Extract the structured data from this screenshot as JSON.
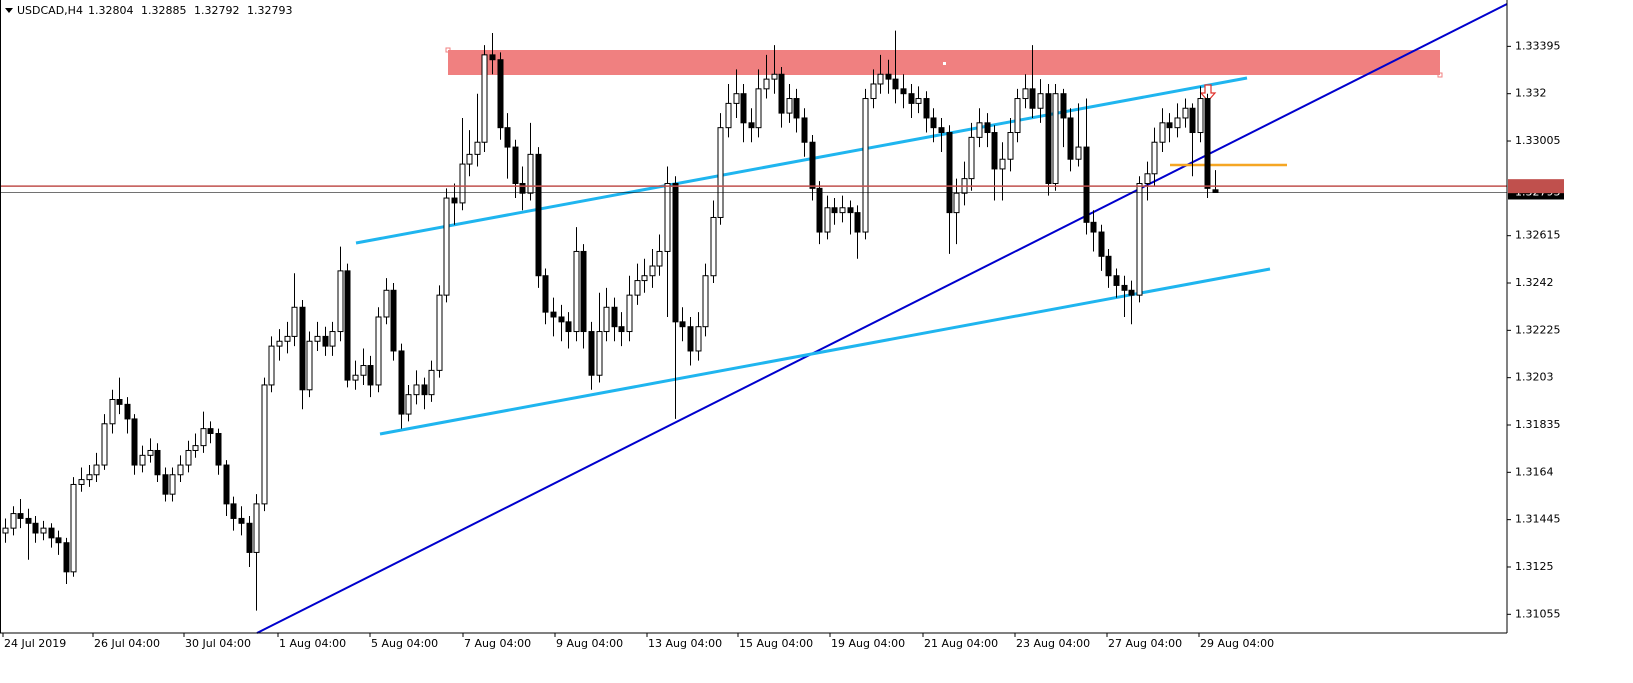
{
  "chart_data": {
    "type": "candlestick",
    "symbol": "USDCAD,H4",
    "ylim": [
      1.30978,
      1.33586
    ],
    "yticks": [
      1.31055,
      1.3125,
      1.31445,
      1.3164,
      1.31835,
      1.3203,
      1.32225,
      1.3242,
      1.32615,
      1.33005,
      1.332,
      1.33395
    ],
    "xticks": [
      "24 Jul 2019",
      "26 Jul 04:00",
      "30 Jul 04:00",
      "1 Aug 04:00",
      "5 Aug 04:00",
      "7 Aug 04:00",
      "9 Aug 04:00",
      "13 Aug 04:00",
      "15 Aug 04:00",
      "19 Aug 04:00",
      "21 Aug 04:00",
      "23 Aug 04:00",
      "27 Aug 04:00",
      "29 Aug 04:00"
    ],
    "up_color": "#ffffff",
    "down_color": "#000000",
    "price_lines": [
      {
        "value": 1.32819,
        "color": "#c0504d"
      },
      {
        "value": 1.32793,
        "color": "#000000"
      }
    ],
    "candles": {
      "open": [
        1.3139,
        1.3141,
        1.3147,
        1.3145,
        1.3143,
        1.3139,
        1.3141,
        1.3137,
        1.3135,
        1.3123,
        1.3159,
        1.3161,
        1.3163,
        1.3167,
        1.3184,
        1.3194,
        1.3192,
        1.3186,
        1.3167,
        1.3171,
        1.3173,
        1.3163,
        1.3155,
        1.3163,
        1.3167,
        1.3173,
        1.3175,
        1.3182,
        1.318,
        1.3167,
        1.3151,
        1.3145,
        1.3143,
        1.3131,
        1.3151,
        1.32,
        1.3216,
        1.3218,
        1.322,
        1.3232,
        1.3198,
        1.3218,
        1.322,
        1.3216,
        1.3222,
        1.3247,
        1.3202,
        1.3204,
        1.3208,
        1.32,
        1.3228,
        1.3239,
        1.3214,
        1.3188,
        1.3196,
        1.32,
        1.3196,
        1.3206,
        1.3237,
        1.3277,
        1.3275,
        1.3291,
        1.3295,
        1.33,
        1.3336,
        1.3334,
        1.3306,
        1.3298,
        1.3283,
        1.3279,
        1.3295,
        1.3245,
        1.323,
        1.3228,
        1.3226,
        1.3222,
        1.3255,
        1.3222,
        1.3204,
        1.3222,
        1.3232,
        1.3224,
        1.3222,
        1.3237,
        1.3243,
        1.3245,
        1.3249,
        1.3255,
        1.3283,
        1.3226,
        1.3224,
        1.3214,
        1.3224,
        1.3245,
        1.3269,
        1.3306,
        1.3316,
        1.332,
        1.3308,
        1.3306,
        1.3322,
        1.3326,
        1.3328,
        1.3312,
        1.3318,
        1.331,
        1.33,
        1.3281,
        1.3263,
        1.3273,
        1.3271,
        1.3273,
        1.3271,
        1.3263,
        1.3318,
        1.3324,
        1.3328,
        1.3326,
        1.3322,
        1.332,
        1.3316,
        1.3318,
        1.331,
        1.3306,
        1.3304,
        1.3271,
        1.3279,
        1.3285,
        1.3302,
        1.3308,
        1.3304,
        1.3289,
        1.3293,
        1.3304,
        1.3318,
        1.3322,
        1.3314,
        1.332,
        1.3283,
        1.332,
        1.331,
        1.3293,
        1.3298,
        1.3267,
        1.3263,
        1.3253,
        1.3245,
        1.3241,
        1.3239,
        1.3237,
        1.3283,
        1.3287,
        1.33,
        1.3308,
        1.3306,
        1.331,
        1.3314,
        1.3304,
        1.3318,
        1.32804
      ],
      "high": [
        1.3145,
        1.315,
        1.3153,
        1.3149,
        1.3146,
        1.3144,
        1.3143,
        1.314,
        1.3137,
        1.3162,
        1.3166,
        1.3167,
        1.3172,
        1.3188,
        1.3198,
        1.3203,
        1.3195,
        1.3188,
        1.3175,
        1.3178,
        1.3176,
        1.3166,
        1.3166,
        1.3171,
        1.3177,
        1.318,
        1.3189,
        1.3185,
        1.3182,
        1.3169,
        1.3154,
        1.315,
        1.3146,
        1.3155,
        1.3203,
        1.322,
        1.3223,
        1.3226,
        1.3246,
        1.3235,
        1.3222,
        1.3226,
        1.3224,
        1.3226,
        1.3257,
        1.325,
        1.321,
        1.3215,
        1.3212,
        1.3232,
        1.3244,
        1.3242,
        1.3217,
        1.32,
        1.3206,
        1.3203,
        1.321,
        1.3241,
        1.3281,
        1.3283,
        1.331,
        1.3305,
        1.332,
        1.334,
        1.3345,
        1.3337,
        1.3312,
        1.3301,
        1.329,
        1.3308,
        1.3298,
        1.3248,
        1.3236,
        1.3233,
        1.323,
        1.3265,
        1.3258,
        1.3226,
        1.3238,
        1.324,
        1.3236,
        1.323,
        1.3245,
        1.325,
        1.3252,
        1.3256,
        1.3262,
        1.329,
        1.3286,
        1.3232,
        1.3228,
        1.323,
        1.325,
        1.3276,
        1.3312,
        1.3324,
        1.333,
        1.3324,
        1.3314,
        1.333,
        1.3336,
        1.334,
        1.3331,
        1.3324,
        1.3322,
        1.3314,
        1.3303,
        1.3284,
        1.3278,
        1.3277,
        1.3278,
        1.3276,
        1.3274,
        1.3322,
        1.333,
        1.3336,
        1.3334,
        1.3346,
        1.3328,
        1.3324,
        1.3323,
        1.3321,
        1.3314,
        1.331,
        1.3307,
        1.3285,
        1.3292,
        1.3308,
        1.3314,
        1.3312,
        1.3307,
        1.33,
        1.331,
        1.3322,
        1.3328,
        1.334,
        1.3326,
        1.3324,
        1.3324,
        1.3322,
        1.3314,
        1.3316,
        1.3318,
        1.3272,
        1.3266,
        1.3256,
        1.3248,
        1.3245,
        1.3243,
        1.3286,
        1.3292,
        1.3306,
        1.3314,
        1.3312,
        1.3316,
        1.3318,
        1.3316,
        1.3323,
        1.332,
        1.32885
      ],
      "low": [
        1.3135,
        1.3138,
        1.3141,
        1.3128,
        1.3135,
        1.3136,
        1.3133,
        1.313,
        1.3118,
        1.3121,
        1.3156,
        1.3158,
        1.316,
        1.3165,
        1.318,
        1.3188,
        1.318,
        1.3163,
        1.3164,
        1.3168,
        1.316,
        1.3152,
        1.3152,
        1.316,
        1.3164,
        1.317,
        1.3172,
        1.3176,
        1.3163,
        1.3146,
        1.314,
        1.3138,
        1.3125,
        1.3107,
        1.3148,
        1.3197,
        1.321,
        1.3213,
        1.3216,
        1.319,
        1.3195,
        1.3214,
        1.3212,
        1.3212,
        1.3218,
        1.3199,
        1.3198,
        1.32,
        1.3195,
        1.3197,
        1.3225,
        1.321,
        1.3182,
        1.3185,
        1.3192,
        1.319,
        1.3193,
        1.3203,
        1.3234,
        1.3266,
        1.3272,
        1.3286,
        1.329,
        1.3296,
        1.3328,
        1.3301,
        1.3285,
        1.3277,
        1.3272,
        1.3276,
        1.324,
        1.3225,
        1.322,
        1.3218,
        1.3215,
        1.3218,
        1.3215,
        1.3198,
        1.3201,
        1.3218,
        1.3218,
        1.3216,
        1.3218,
        1.3233,
        1.3238,
        1.324,
        1.3245,
        1.3228,
        1.3186,
        1.3218,
        1.3208,
        1.321,
        1.322,
        1.3242,
        1.3266,
        1.3302,
        1.331,
        1.33,
        1.33,
        1.3302,
        1.3318,
        1.332,
        1.3306,
        1.3308,
        1.3304,
        1.3294,
        1.3276,
        1.3258,
        1.326,
        1.3266,
        1.3267,
        1.3262,
        1.3252,
        1.326,
        1.3314,
        1.332,
        1.332,
        1.3316,
        1.3314,
        1.331,
        1.3312,
        1.3304,
        1.33,
        1.3296,
        1.3254,
        1.3258,
        1.3274,
        1.328,
        1.3298,
        1.3298,
        1.3276,
        1.3276,
        1.3288,
        1.33,
        1.3314,
        1.331,
        1.3308,
        1.3278,
        1.328,
        1.3298,
        1.3288,
        1.329,
        1.3262,
        1.3255,
        1.3247,
        1.324,
        1.3236,
        1.3228,
        1.3225,
        1.3234,
        1.3276,
        1.3282,
        1.3296,
        1.33,
        1.3302,
        1.3306,
        1.3286,
        1.33,
        1.3277,
        1.32792
      ],
      "close": [
        1.3141,
        1.3147,
        1.3145,
        1.3143,
        1.3139,
        1.3141,
        1.3137,
        1.3135,
        1.3123,
        1.3159,
        1.3161,
        1.3163,
        1.3167,
        1.3184,
        1.3194,
        1.3192,
        1.3186,
        1.3167,
        1.3171,
        1.3173,
        1.3163,
        1.3155,
        1.3163,
        1.3167,
        1.3173,
        1.3175,
        1.3182,
        1.318,
        1.3167,
        1.3151,
        1.3145,
        1.3143,
        1.3131,
        1.3151,
        1.32,
        1.3216,
        1.3218,
        1.322,
        1.3232,
        1.3198,
        1.3218,
        1.322,
        1.3216,
        1.3222,
        1.3247,
        1.3202,
        1.3204,
        1.3208,
        1.32,
        1.3228,
        1.3239,
        1.3214,
        1.3188,
        1.3196,
        1.32,
        1.3196,
        1.3206,
        1.3237,
        1.3277,
        1.3275,
        1.3291,
        1.3295,
        1.33,
        1.3336,
        1.3334,
        1.3306,
        1.3298,
        1.3283,
        1.3279,
        1.3295,
        1.3245,
        1.323,
        1.3228,
        1.3226,
        1.3222,
        1.3255,
        1.3222,
        1.3204,
        1.3222,
        1.3232,
        1.3224,
        1.3222,
        1.3237,
        1.3243,
        1.3245,
        1.3249,
        1.3255,
        1.3283,
        1.3226,
        1.3224,
        1.3214,
        1.3224,
        1.3245,
        1.3269,
        1.3306,
        1.3316,
        1.332,
        1.3308,
        1.3306,
        1.3322,
        1.3326,
        1.3328,
        1.3312,
        1.3318,
        1.331,
        1.33,
        1.3281,
        1.3263,
        1.3273,
        1.3271,
        1.3273,
        1.3271,
        1.3263,
        1.3318,
        1.3324,
        1.3328,
        1.3326,
        1.3322,
        1.332,
        1.3316,
        1.3318,
        1.331,
        1.3306,
        1.3304,
        1.3271,
        1.3279,
        1.3285,
        1.3302,
        1.3308,
        1.3304,
        1.3289,
        1.3293,
        1.3304,
        1.3318,
        1.3322,
        1.3314,
        1.332,
        1.3283,
        1.332,
        1.331,
        1.3293,
        1.3298,
        1.3267,
        1.3263,
        1.3253,
        1.3245,
        1.3241,
        1.3239,
        1.3237,
        1.3283,
        1.3287,
        1.33,
        1.3308,
        1.3306,
        1.331,
        1.3314,
        1.3304,
        1.3318,
        1.3281,
        1.32793
      ]
    }
  }
}
